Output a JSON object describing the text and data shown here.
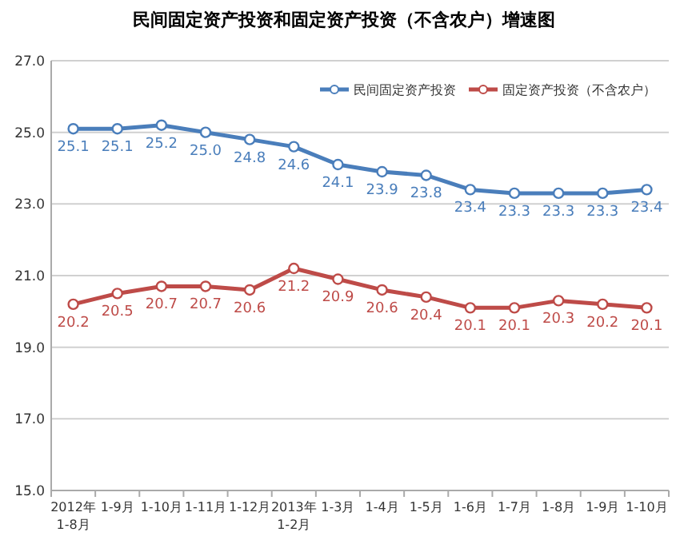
{
  "chart_data": {
    "type": "line",
    "title": "民间固定资产投资和固定资产投资（不含农户）增速图",
    "categories": [
      "2012年\n1-8月",
      "1-9月",
      "1-10月",
      "1-11月",
      "1-12月",
      "2013年\n1-2月",
      "1-3月",
      "1-4月",
      "1-5月",
      "1-6月",
      "1-7月",
      "1-8月",
      "1-9月",
      "1-10月"
    ],
    "series": [
      {
        "name": "民间固定资产投资",
        "color": "#4a7ebb",
        "values": [
          25.1,
          25.1,
          25.2,
          25.0,
          24.8,
          24.6,
          24.1,
          23.9,
          23.8,
          23.4,
          23.3,
          23.3,
          23.3,
          23.4
        ],
        "value_labels": [
          "25.1",
          "25.1",
          "25.2",
          "25.0",
          "24.8",
          "24.6",
          "24.1",
          "23.9",
          "23.8",
          "23.4",
          "23.3",
          "23.3",
          "23.3",
          "23.4"
        ]
      },
      {
        "name": "固定资产投资（不含农户）",
        "color": "#be4b48",
        "values": [
          20.2,
          20.5,
          20.7,
          20.7,
          20.6,
          21.2,
          20.9,
          20.6,
          20.4,
          20.1,
          20.1,
          20.3,
          20.2,
          20.1
        ],
        "value_labels": [
          "20.2",
          "20.5",
          "20.7",
          "20.7",
          "20.6",
          "21.2",
          "20.9",
          "20.6",
          "20.4",
          "20.1",
          "20.1",
          "20.3",
          "20.2",
          "20.1"
        ]
      }
    ],
    "ylim": [
      15,
      27
    ],
    "yticks": [
      {
        "value": 15,
        "label": "15.0"
      },
      {
        "value": 17,
        "label": "17.0"
      },
      {
        "value": 19,
        "label": "19.0"
      },
      {
        "value": 21,
        "label": "21.0"
      },
      {
        "value": 23,
        "label": "23.0"
      },
      {
        "value": 25,
        "label": "25.0"
      },
      {
        "value": 27,
        "label": "27.0"
      }
    ],
    "grid": "y",
    "legend": "top right",
    "marker": "circle",
    "line_style": "solid"
  }
}
